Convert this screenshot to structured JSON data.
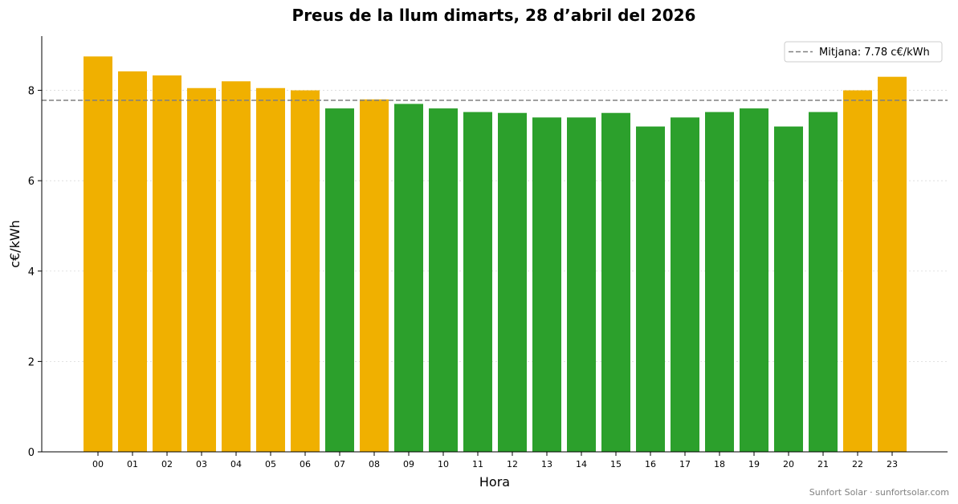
{
  "chart_data": {
    "type": "bar",
    "title": "Preus de la llum dimarts, 28 d’abril del 2026",
    "xlabel": "Hora",
    "ylabel": "c€/kWh",
    "categories": [
      "00",
      "01",
      "02",
      "03",
      "04",
      "05",
      "06",
      "07",
      "08",
      "09",
      "10",
      "11",
      "12",
      "13",
      "14",
      "15",
      "16",
      "17",
      "18",
      "19",
      "20",
      "21",
      "22",
      "23"
    ],
    "values": [
      8.75,
      8.42,
      8.33,
      8.05,
      8.2,
      8.05,
      8.0,
      7.6,
      7.8,
      7.7,
      7.6,
      7.52,
      7.5,
      7.4,
      7.4,
      7.5,
      7.2,
      7.4,
      7.52,
      7.6,
      7.2,
      7.52,
      8.0,
      8.3
    ],
    "average": 7.78,
    "ylim": [
      0,
      9.2
    ],
    "yticks": [
      "0",
      "2",
      "4",
      "6",
      "8"
    ],
    "grid": "horizontal dotted",
    "legend": {
      "position": "top-right",
      "label": "Mitjana: 7.78 c€/kWh"
    },
    "colors": {
      "above_average": "#f0b000",
      "below_average": "#2ca02c",
      "average_line": "#808080"
    }
  },
  "footer": "Sunfort Solar · sunfortsolar.com"
}
